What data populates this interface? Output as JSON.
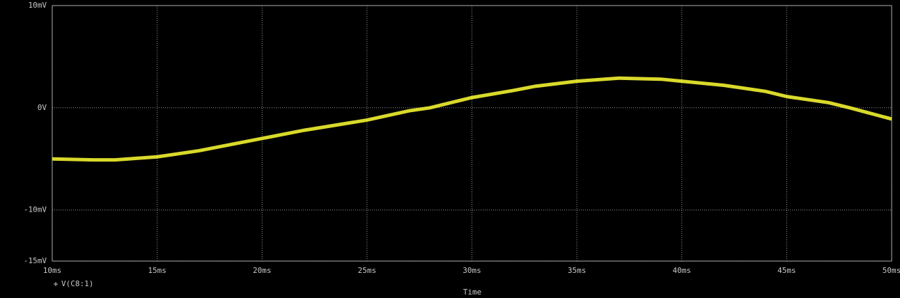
{
  "chart_data": {
    "type": "line",
    "title": null,
    "x_label": "Time",
    "x": [
      10,
      12,
      13,
      15,
      17,
      19,
      20,
      22,
      25,
      27,
      28,
      30,
      32,
      33,
      35,
      37,
      39,
      40,
      42,
      44,
      45,
      47,
      48,
      50
    ],
    "series": [
      {
        "name": "V(C8:1)",
        "color": "#ffff33",
        "values": [
          -5.0,
          -5.1,
          -5.1,
          -4.8,
          -4.2,
          -3.4,
          -3.0,
          -2.2,
          -1.2,
          -0.3,
          0.0,
          1.0,
          1.7,
          2.1,
          2.6,
          2.9,
          2.8,
          2.6,
          2.2,
          1.6,
          1.1,
          0.5,
          0.0,
          -1.1
        ]
      }
    ],
    "xlim": [
      10,
      50
    ],
    "xticks": [
      {
        "value": 10,
        "label": "10ms"
      },
      {
        "value": 15,
        "label": "15ms"
      },
      {
        "value": 20,
        "label": "20ms"
      },
      {
        "value": 25,
        "label": "25ms"
      },
      {
        "value": 30,
        "label": "30ms"
      },
      {
        "value": 35,
        "label": "35ms"
      },
      {
        "value": 40,
        "label": "40ms"
      },
      {
        "value": 45,
        "label": "45ms"
      },
      {
        "value": 50,
        "label": "50ms"
      }
    ],
    "ylim": [
      -15,
      10
    ],
    "yticks": [
      {
        "value": -15,
        "label": "-15mV"
      },
      {
        "value": -10,
        "label": "-10mV"
      },
      {
        "value": 0,
        "label": "0V"
      },
      {
        "value": 10,
        "label": "10mV"
      }
    ],
    "grid": true
  }
}
